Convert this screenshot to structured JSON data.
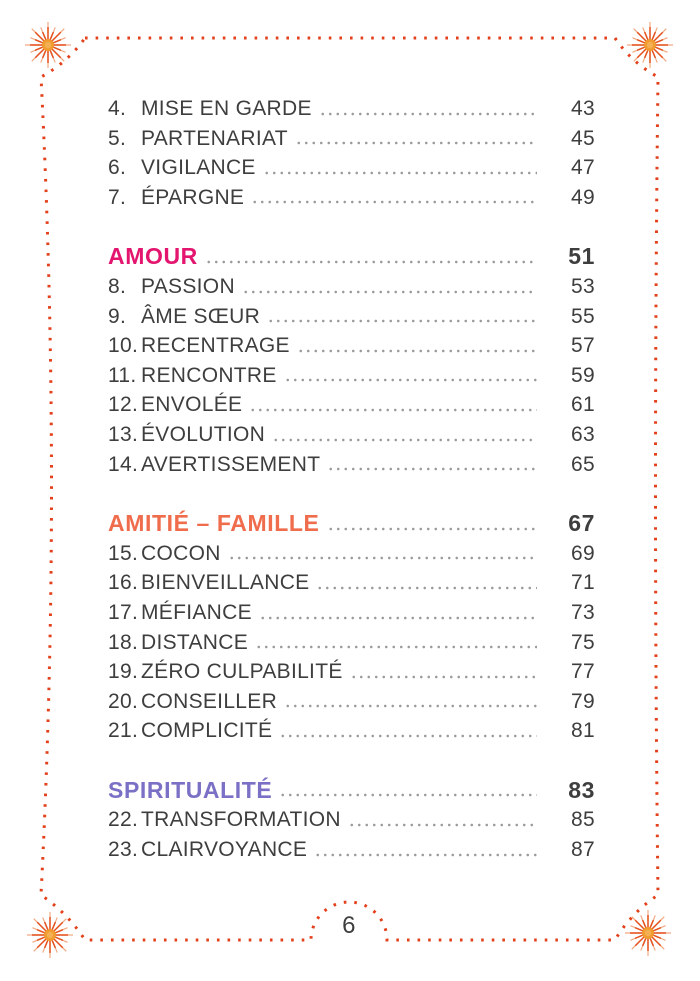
{
  "page": {
    "number": "6"
  },
  "colors": {
    "background": "#ffffff",
    "text": "#3e3e3e",
    "leader_dots": "#9a9a9a",
    "border_dots": "#e2411b",
    "star_ray": "#e4511e",
    "star_ray_faint": "#f2a980",
    "star_core": "#f09c30",
    "star_core_light": "#f6b054"
  },
  "toc": {
    "sections": [
      {
        "header": null,
        "entries": [
          {
            "num": "4.",
            "title": "MISE EN GARDE",
            "page": "43"
          },
          {
            "num": "5.",
            "title": "PARTENARIAT",
            "page": "45"
          },
          {
            "num": "6.",
            "title": "VIGILANCE",
            "page": "47"
          },
          {
            "num": "7.",
            "title": "ÉPARGNE",
            "page": "49"
          }
        ]
      },
      {
        "header": {
          "label": "AMOUR",
          "page": "51",
          "color": "#e3156f"
        },
        "entries": [
          {
            "num": "8.",
            "title": "PASSION",
            "page": "53"
          },
          {
            "num": "9.",
            "title": "ÂME SŒUR",
            "page": "55"
          },
          {
            "num": "10.",
            "title": "RECENTRAGE",
            "page": "57"
          },
          {
            "num": "11.",
            "title": "RENCONTRE",
            "page": "59"
          },
          {
            "num": "12.",
            "title": "ENVOLÉE",
            "page": "61"
          },
          {
            "num": "13.",
            "title": "ÉVOLUTION",
            "page": "63"
          },
          {
            "num": "14.",
            "title": "AVERTISSEMENT",
            "page": "65"
          }
        ]
      },
      {
        "header": {
          "label": "AMITIÉ – FAMILLE",
          "page": "67",
          "color": "#ef6c4c"
        },
        "entries": [
          {
            "num": "15.",
            "title": "COCON",
            "page": "69"
          },
          {
            "num": "16.",
            "title": "BIENVEILLANCE",
            "page": "71"
          },
          {
            "num": "17.",
            "title": "MÉFIANCE",
            "page": "73"
          },
          {
            "num": "18.",
            "title": "DISTANCE",
            "page": "75"
          },
          {
            "num": "19.",
            "title": "ZÉRO CULPABILITÉ",
            "page": "77"
          },
          {
            "num": "20.",
            "title": "CONSEILLER",
            "page": "79"
          },
          {
            "num": "21.",
            "title": "COMPLICITÉ",
            "page": "81"
          }
        ]
      },
      {
        "header": {
          "label": "SPIRITUALITÉ",
          "page": "83",
          "color": "#7a70c5"
        },
        "entries": [
          {
            "num": "22.",
            "title": "TRANSFORMATION",
            "page": "85"
          },
          {
            "num": "23.",
            "title": "CLAIRVOYANCE",
            "page": "87"
          }
        ]
      }
    ]
  }
}
